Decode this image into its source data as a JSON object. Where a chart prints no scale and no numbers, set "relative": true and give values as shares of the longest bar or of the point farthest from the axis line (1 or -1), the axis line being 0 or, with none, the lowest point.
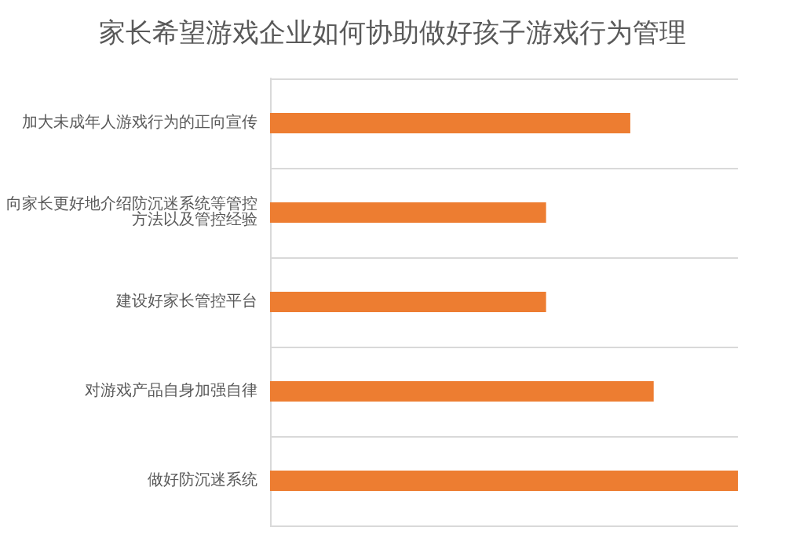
{
  "chart_data": {
    "type": "bar",
    "orientation": "horizontal",
    "relative": true,
    "title": "家长希望游戏企业如何协助做好孩子游戏行为管理",
    "categories": [
      "加大未成年人游戏行为的正向宣传",
      "向家长更好地介绍防沉迷系统等管控方法以及管控经验",
      "建设好家长管控平台",
      "对游戏产品自身加强自律",
      "做好防沉迷系统"
    ],
    "values": [
      0.77,
      0.59,
      0.59,
      0.82,
      1
    ],
    "color": "#ed7d31",
    "grid": "y"
  }
}
